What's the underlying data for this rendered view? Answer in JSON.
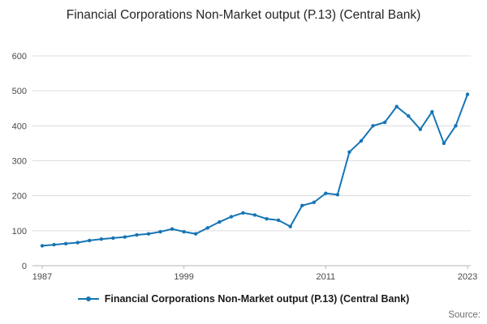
{
  "title": "Financial Corporations Non-Market output (P.13) (Central Bank)",
  "legend": {
    "label": "Financial Corporations Non-Market output (P.13) (Central Bank)"
  },
  "source_label": "Source:",
  "colors": {
    "line": "#1575b5",
    "grid": "#dcdcdc",
    "axis": "#b5b5b5",
    "tick_text": "#4a4a4a"
  },
  "chart_data": {
    "type": "line",
    "title": "Financial Corporations Non-Market output (P.13) (Central Bank)",
    "xlabel": "",
    "ylabel": "",
    "x": [
      1987,
      1988,
      1989,
      1990,
      1991,
      1992,
      1993,
      1994,
      1995,
      1996,
      1997,
      1998,
      1999,
      2000,
      2001,
      2002,
      2003,
      2004,
      2005,
      2006,
      2007,
      2008,
      2009,
      2010,
      2011,
      2012,
      2013,
      2014,
      2015,
      2016,
      2017,
      2018,
      2019,
      2020,
      2021,
      2022,
      2023
    ],
    "values": [
      57,
      60,
      63,
      66,
      72,
      76,
      79,
      82,
      88,
      91,
      97,
      105,
      97,
      91,
      108,
      125,
      140,
      151,
      145,
      134,
      130,
      112,
      172,
      181,
      207,
      203,
      325,
      357,
      400,
      410,
      455,
      428,
      390,
      440,
      350,
      400,
      490
    ],
    "ylim": [
      0,
      600
    ],
    "yticks": [
      0,
      100,
      200,
      300,
      400,
      500,
      600
    ],
    "xticks": [
      1987,
      1999,
      2011,
      2023
    ],
    "grid": "horizontal",
    "marker": "circle",
    "legend_position": "bottom",
    "legend_entries": [
      "Financial Corporations Non-Market output (P.13) (Central Bank)"
    ]
  }
}
